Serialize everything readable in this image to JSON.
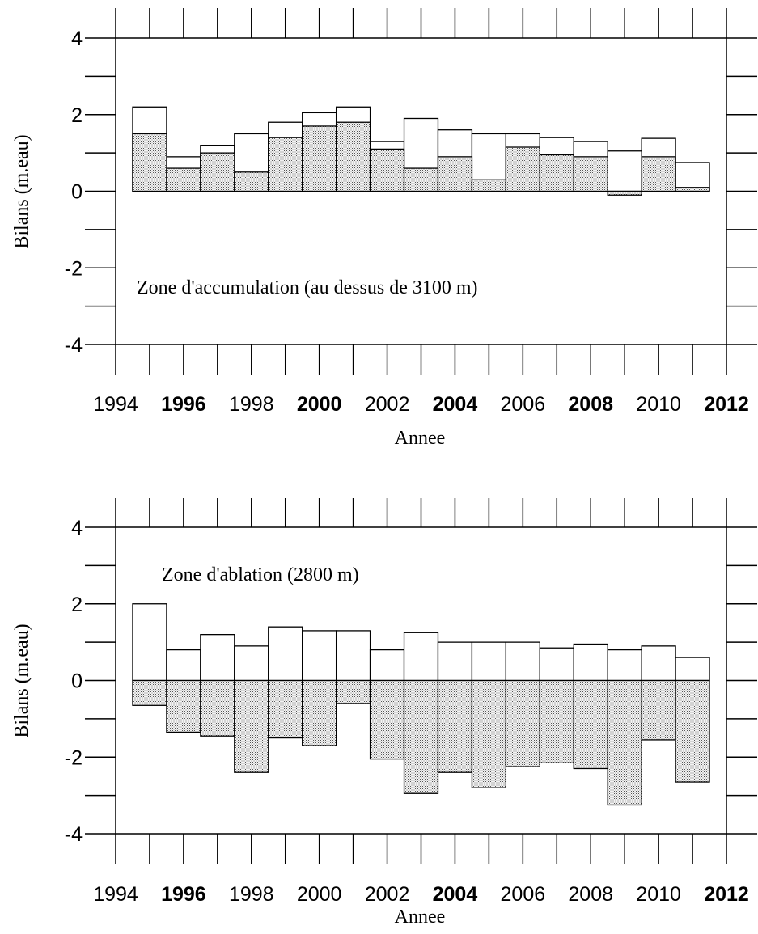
{
  "chart_data": [
    {
      "type": "bar",
      "annotation": "Zone d'accumulation (au dessus de 3100 m)",
      "xlabel": "Annee",
      "ylabel": "Bilans (m.eau)",
      "xlim": [
        1994,
        2012
      ],
      "ylim": [
        -4,
        4
      ],
      "x_ticks": [
        "1994",
        "1996",
        "1998",
        "2000",
        "2002",
        "2004",
        "2006",
        "2008",
        "2010",
        "2012"
      ],
      "x_ticks_bold": [
        "1996",
        "2000",
        "2004",
        "2008",
        "2012"
      ],
      "y_ticks": [
        "4",
        "2",
        "0",
        "-2",
        "-4"
      ],
      "categories": [
        1995,
        1996,
        1997,
        1998,
        1999,
        2000,
        2001,
        2002,
        2003,
        2004,
        2005,
        2006,
        2007,
        2008,
        2009,
        2010,
        2011
      ],
      "series": [
        {
          "style": "outline",
          "values": [
            2.2,
            0.9,
            1.2,
            1.5,
            1.8,
            2.05,
            2.2,
            1.3,
            1.9,
            1.6,
            1.5,
            1.5,
            1.4,
            1.3,
            1.05,
            1.38,
            0.75
          ]
        },
        {
          "style": "stippled",
          "values": [
            1.5,
            0.6,
            1.0,
            0.5,
            1.4,
            1.7,
            1.8,
            1.1,
            0.6,
            0.9,
            0.3,
            1.15,
            0.95,
            0.9,
            -0.1,
            0.9,
            0.1
          ]
        }
      ],
      "grid": false
    },
    {
      "type": "bar",
      "annotation": "Zone d'ablation (2800 m)",
      "xlabel": "Annee",
      "ylabel": "Bilans (m.eau)",
      "xlim": [
        1994,
        2012
      ],
      "ylim": [
        -4,
        4
      ],
      "x_ticks": [
        "1994",
        "1996",
        "1998",
        "2000",
        "2002",
        "2004",
        "2006",
        "2008",
        "2010",
        "2012"
      ],
      "x_ticks_bold": [
        "1996",
        "2004",
        "2012"
      ],
      "y_ticks": [
        "4",
        "2",
        "0",
        "-2",
        "-4"
      ],
      "categories": [
        1995,
        1996,
        1997,
        1998,
        1999,
        2000,
        2001,
        2002,
        2003,
        2004,
        2005,
        2006,
        2007,
        2008,
        2009,
        2010,
        2011
      ],
      "series": [
        {
          "style": "outline",
          "values": [
            2.0,
            0.8,
            1.2,
            0.9,
            1.4,
            1.3,
            1.3,
            0.8,
            1.25,
            1.0,
            1.0,
            1.0,
            0.85,
            0.95,
            0.8,
            0.9,
            0.6
          ]
        },
        {
          "style": "stippled",
          "values": [
            -0.65,
            -1.35,
            -1.45,
            -2.4,
            -1.5,
            -1.7,
            -0.6,
            -2.05,
            -2.95,
            -2.4,
            -2.8,
            -2.25,
            -2.15,
            -2.3,
            -3.25,
            -1.55,
            -2.65
          ]
        }
      ],
      "grid": false
    }
  ]
}
